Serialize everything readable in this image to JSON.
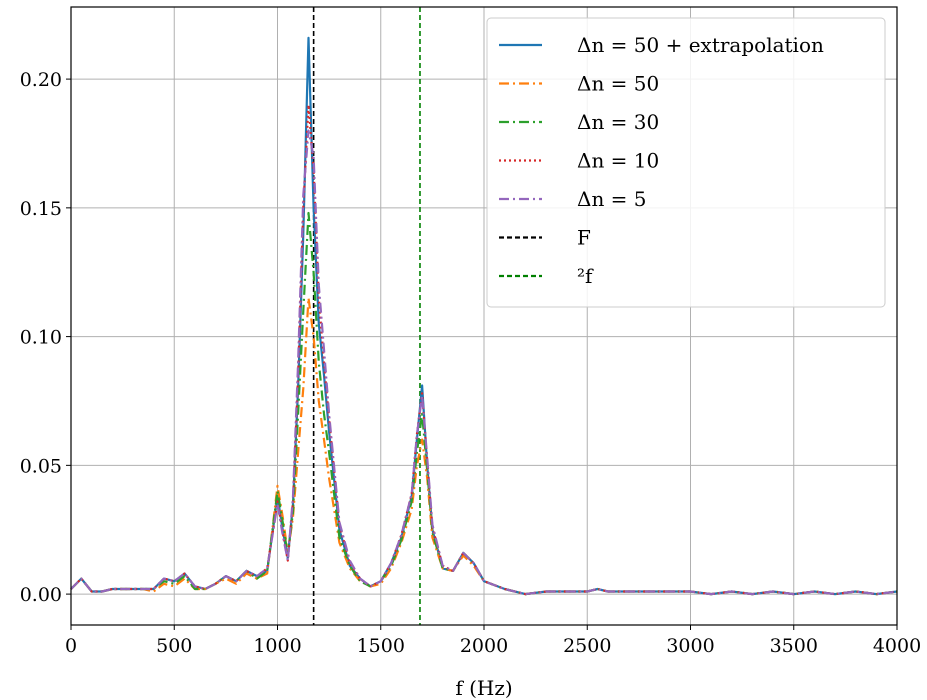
{
  "chart_data": {
    "type": "line",
    "xlabel": "f (Hz)",
    "ylabel": "",
    "xlim": [
      0,
      4000
    ],
    "ylim": [
      -0.012,
      0.228
    ],
    "xticks": [
      0,
      500,
      1000,
      1500,
      2000,
      2500,
      3000,
      3500,
      4000
    ],
    "xtick_labels": [
      "0",
      "500",
      "1000",
      "1500",
      "2000",
      "2500",
      "3000",
      "3500",
      "4000"
    ],
    "yticks": [
      0.0,
      0.05,
      0.1,
      0.15,
      0.2
    ],
    "ytick_labels": [
      "0.00",
      "0.05",
      "0.10",
      "0.15",
      "0.20"
    ],
    "grid": true,
    "legend_position": "top-right",
    "x": [
      0,
      50,
      100,
      150,
      200,
      250,
      300,
      350,
      400,
      450,
      500,
      550,
      600,
      650,
      700,
      750,
      800,
      850,
      900,
      950,
      1000,
      1025,
      1050,
      1075,
      1100,
      1125,
      1150,
      1175,
      1200,
      1225,
      1250,
      1300,
      1350,
      1400,
      1450,
      1500,
      1550,
      1600,
      1650,
      1675,
      1700,
      1725,
      1750,
      1800,
      1850,
      1900,
      1950,
      2000,
      2100,
      2200,
      2300,
      2400,
      2500,
      2550,
      2600,
      2700,
      2800,
      2900,
      3000,
      3100,
      3200,
      3300,
      3400,
      3500,
      3600,
      3700,
      3800,
      3900,
      4000
    ],
    "series": [
      {
        "name": "Δn = 50 + extrapolation",
        "color": "#1f77b4",
        "dash": "solid",
        "values": [
          0.002,
          0.006,
          0.001,
          0.001,
          0.002,
          0.002,
          0.002,
          0.002,
          0.002,
          0.006,
          0.005,
          0.008,
          0.003,
          0.002,
          0.004,
          0.007,
          0.005,
          0.009,
          0.007,
          0.009,
          0.038,
          0.025,
          0.014,
          0.035,
          0.08,
          0.14,
          0.216,
          0.15,
          0.105,
          0.085,
          0.063,
          0.025,
          0.011,
          0.006,
          0.003,
          0.005,
          0.012,
          0.022,
          0.038,
          0.06,
          0.081,
          0.05,
          0.025,
          0.01,
          0.009,
          0.016,
          0.012,
          0.005,
          0.002,
          0.0,
          0.001,
          0.001,
          0.001,
          0.002,
          0.001,
          0.001,
          0.001,
          0.001,
          0.001,
          0.0,
          0.001,
          0.0,
          0.001,
          0.0,
          0.001,
          0.0,
          0.001,
          0.0,
          0.001
        ]
      },
      {
        "name": "Δn = 50",
        "color": "#ff7f0e",
        "dash": "dashdot",
        "values": [
          0.002,
          0.006,
          0.001,
          0.001,
          0.002,
          0.002,
          0.002,
          0.002,
          0.001,
          0.004,
          0.003,
          0.006,
          0.002,
          0.002,
          0.004,
          0.006,
          0.004,
          0.008,
          0.006,
          0.008,
          0.042,
          0.03,
          0.016,
          0.03,
          0.055,
          0.08,
          0.115,
          0.1,
          0.075,
          0.06,
          0.045,
          0.02,
          0.01,
          0.005,
          0.003,
          0.004,
          0.01,
          0.02,
          0.033,
          0.05,
          0.06,
          0.045,
          0.022,
          0.01,
          0.009,
          0.015,
          0.011,
          0.005,
          0.002,
          0.0,
          0.001,
          0.001,
          0.001,
          0.002,
          0.001,
          0.001,
          0.001,
          0.001,
          0.001,
          0.0,
          0.001,
          0.0,
          0.001,
          0.0,
          0.001,
          0.0,
          0.001,
          0.0,
          0.001
        ]
      },
      {
        "name": "Δn = 30",
        "color": "#2ca02c",
        "dash": "dashdot",
        "values": [
          0.002,
          0.006,
          0.001,
          0.001,
          0.002,
          0.002,
          0.002,
          0.002,
          0.002,
          0.005,
          0.004,
          0.007,
          0.002,
          0.002,
          0.004,
          0.007,
          0.005,
          0.009,
          0.006,
          0.009,
          0.04,
          0.028,
          0.015,
          0.032,
          0.07,
          0.11,
          0.148,
          0.125,
          0.09,
          0.07,
          0.055,
          0.022,
          0.011,
          0.005,
          0.003,
          0.005,
          0.011,
          0.021,
          0.036,
          0.055,
          0.07,
          0.048,
          0.024,
          0.01,
          0.009,
          0.016,
          0.012,
          0.005,
          0.002,
          0.0,
          0.001,
          0.001,
          0.001,
          0.002,
          0.001,
          0.001,
          0.001,
          0.001,
          0.001,
          0.0,
          0.001,
          0.0,
          0.001,
          0.0,
          0.001,
          0.0,
          0.001,
          0.0,
          0.001
        ]
      },
      {
        "name": "Δn = 10",
        "color": "#d62728",
        "dash": "dotted",
        "values": [
          0.002,
          0.006,
          0.001,
          0.001,
          0.002,
          0.002,
          0.002,
          0.002,
          0.002,
          0.006,
          0.005,
          0.008,
          0.003,
          0.002,
          0.004,
          0.007,
          0.005,
          0.009,
          0.007,
          0.01,
          0.036,
          0.024,
          0.013,
          0.036,
          0.085,
          0.15,
          0.19,
          0.165,
          0.115,
          0.09,
          0.068,
          0.027,
          0.012,
          0.006,
          0.003,
          0.005,
          0.012,
          0.023,
          0.039,
          0.062,
          0.078,
          0.052,
          0.026,
          0.011,
          0.009,
          0.016,
          0.012,
          0.005,
          0.002,
          0.0,
          0.001,
          0.001,
          0.001,
          0.002,
          0.001,
          0.001,
          0.001,
          0.001,
          0.001,
          0.0,
          0.001,
          0.0,
          0.001,
          0.0,
          0.001,
          0.0,
          0.001,
          0.0,
          0.001
        ]
      },
      {
        "name": "Δn = 5",
        "color": "#9467bd",
        "dash": "dashdot",
        "values": [
          0.002,
          0.006,
          0.001,
          0.001,
          0.002,
          0.002,
          0.002,
          0.002,
          0.002,
          0.006,
          0.005,
          0.008,
          0.003,
          0.002,
          0.004,
          0.007,
          0.005,
          0.009,
          0.007,
          0.01,
          0.035,
          0.023,
          0.013,
          0.038,
          0.09,
          0.155,
          0.18,
          0.17,
          0.12,
          0.095,
          0.07,
          0.028,
          0.013,
          0.006,
          0.003,
          0.005,
          0.012,
          0.023,
          0.039,
          0.062,
          0.077,
          0.053,
          0.027,
          0.011,
          0.009,
          0.016,
          0.012,
          0.005,
          0.002,
          0.0,
          0.001,
          0.001,
          0.001,
          0.002,
          0.001,
          0.001,
          0.001,
          0.001,
          0.001,
          0.0,
          0.001,
          0.0,
          0.001,
          0.0,
          0.001,
          0.0,
          0.001,
          0.0,
          0.001
        ]
      }
    ],
    "vlines": [
      {
        "name": "F",
        "x": 1175,
        "color": "#000000"
      },
      {
        "name": "²f",
        "x": 1690,
        "color": "#008000"
      }
    ]
  }
}
